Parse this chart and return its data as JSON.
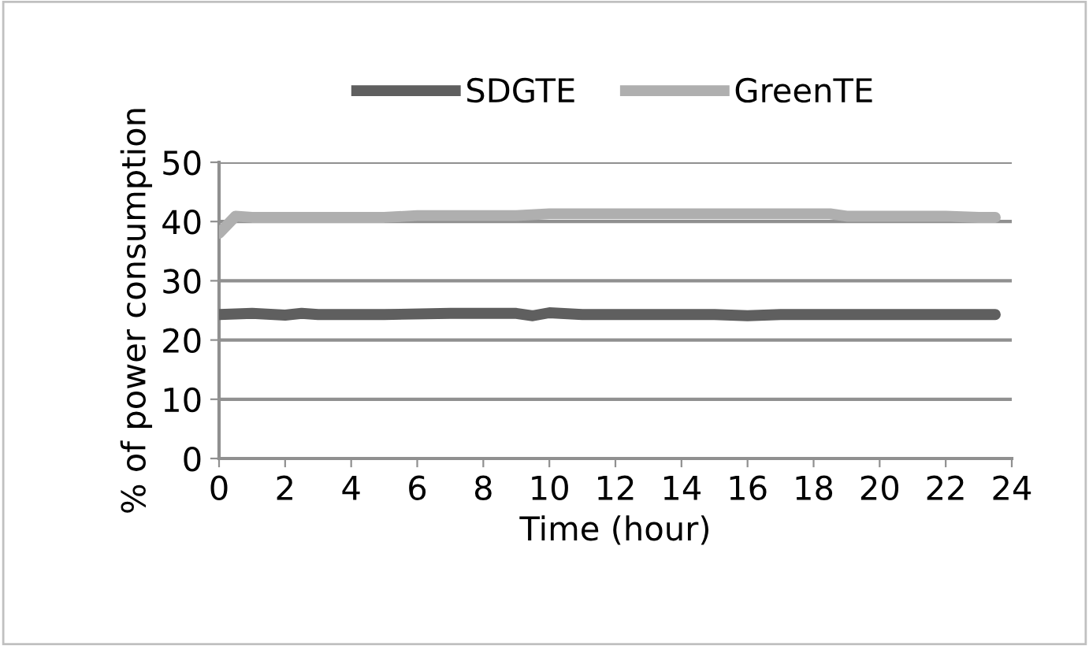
{
  "chart_data": {
    "type": "line",
    "xlabel": "Time (hour)",
    "ylabel": "% of power consumption",
    "xlim": [
      0,
      24
    ],
    "xticks": [
      0,
      2,
      4,
      6,
      8,
      10,
      12,
      14,
      16,
      18,
      20,
      22,
      24
    ],
    "ylim": [
      0,
      50
    ],
    "yticks": [
      0,
      10,
      20,
      30,
      40,
      50
    ],
    "grid": "y",
    "legend": "top",
    "marker": "none",
    "line_style": "solid",
    "series": [
      {
        "name": "SDGTE",
        "color": "#5f5f5f",
        "x": [
          0,
          1,
          2,
          2.5,
          3,
          5,
          7,
          8,
          9,
          9.5,
          10,
          11,
          13,
          15,
          16,
          17,
          19,
          21,
          23,
          23.5
        ],
        "values": [
          24.3,
          24.5,
          24.2,
          24.5,
          24.3,
          24.3,
          24.5,
          24.5,
          24.5,
          24.1,
          24.6,
          24.3,
          24.3,
          24.3,
          24.1,
          24.3,
          24.3,
          24.3,
          24.3,
          24.3
        ]
      },
      {
        "name": "GreenTE",
        "color": "#afafaf",
        "x": [
          0,
          0.5,
          1,
          2,
          3,
          4,
          5,
          6,
          7,
          8,
          9,
          10,
          11,
          12,
          13,
          14,
          15,
          16,
          17,
          18,
          18.5,
          19,
          20,
          21,
          22,
          23,
          23.5
        ],
        "values": [
          38,
          40.9,
          40.7,
          40.7,
          40.7,
          40.7,
          40.7,
          41,
          41,
          41,
          41,
          41.3,
          41.3,
          41.3,
          41.3,
          41.3,
          41.3,
          41.3,
          41.3,
          41.3,
          41.3,
          40.9,
          40.9,
          40.9,
          40.9,
          40.7,
          40.7
        ]
      }
    ]
  }
}
